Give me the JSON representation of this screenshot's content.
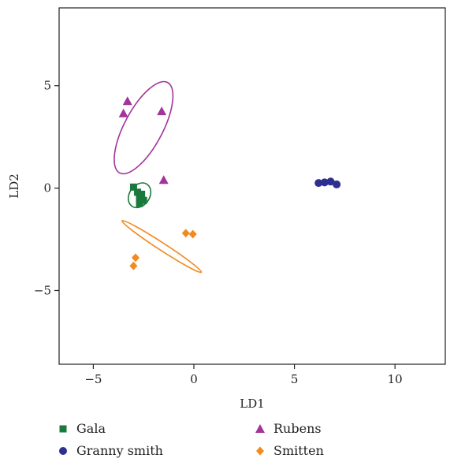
{
  "chart_data": {
    "type": "scatter",
    "title": "",
    "xlabel": "LD1",
    "ylabel": "LD2",
    "xlim": [
      -6.7,
      12.5
    ],
    "ylim": [
      -8.6,
      8.8
    ],
    "xticks": [
      -5,
      0,
      5,
      10
    ],
    "yticks": [
      -5,
      0,
      5
    ],
    "xtick_labels": [
      "−5",
      "0",
      "5",
      "10"
    ],
    "ytick_labels": [
      "−5",
      "0",
      "5"
    ],
    "grid": false,
    "legend_position": "bottom",
    "series": [
      {
        "name": "Gala",
        "marker": "square",
        "color": "#1a7a3c",
        "points": [
          [
            -3.0,
            0.05
          ],
          [
            -2.7,
            -0.5
          ],
          [
            -2.5,
            -0.6
          ],
          [
            -2.6,
            -0.3
          ],
          [
            -2.7,
            -0.75
          ],
          [
            -2.8,
            -0.2
          ]
        ],
        "ellipse": {
          "cx": -2.7,
          "cy": -0.35,
          "rx_data": 0.5,
          "ry_data": 0.65,
          "angle_deg": 35
        }
      },
      {
        "name": "Granny smith",
        "marker": "circle",
        "color": "#2e2f8f",
        "points": [
          [
            6.2,
            0.25
          ],
          [
            6.5,
            0.28
          ],
          [
            6.8,
            0.32
          ],
          [
            7.1,
            0.18
          ]
        ],
        "ellipse": null
      },
      {
        "name": "Rubens",
        "marker": "triangle",
        "color": "#a3349b",
        "points": [
          [
            -3.3,
            4.25
          ],
          [
            -3.5,
            3.65
          ],
          [
            -1.6,
            3.75
          ],
          [
            -1.5,
            0.4
          ]
        ],
        "ellipse": {
          "cx": -2.5,
          "cy": 2.95,
          "rx_data": 0.95,
          "ry_data": 2.5,
          "angle_deg": 28
        }
      },
      {
        "name": "Smitten",
        "marker": "diamond",
        "color": "#f28a1e",
        "points": [
          [
            -2.9,
            -3.4
          ],
          [
            -3.0,
            -3.8
          ],
          [
            -0.4,
            -2.2
          ],
          [
            -0.05,
            -2.25
          ]
        ],
        "ellipse": {
          "cx": -1.6,
          "cy": -2.85,
          "rx_data": 2.35,
          "ry_data": 0.18,
          "angle_deg": 33
        }
      }
    ]
  }
}
